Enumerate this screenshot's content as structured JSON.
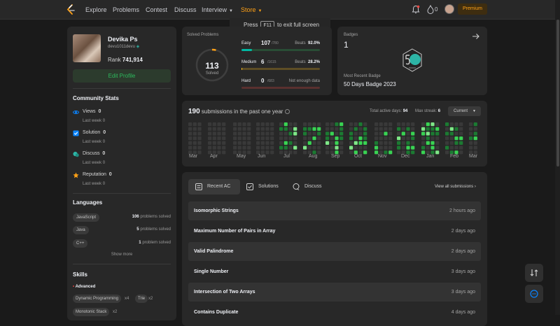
{
  "nav": {
    "items": [
      "Explore",
      "Problems",
      "Contest",
      "Discuss",
      "Interview",
      "Store"
    ],
    "fire_count": "0",
    "premium": "Premium",
    "fullscreen_tip": {
      "before": "Press",
      "key": "F11",
      "after": "to exit full screen"
    }
  },
  "profile": {
    "name": "Devika Ps",
    "handle": "devu1011devu",
    "rank_label": "Rank",
    "rank": "741,914",
    "edit_button": "Edit Profile"
  },
  "community": {
    "title": "Community Stats",
    "stats": [
      {
        "label": "Views",
        "value": "0",
        "sub": "Last week",
        "sub_value": "0",
        "icon": "eye-icon",
        "color": "#0a84ff"
      },
      {
        "label": "Solution",
        "value": "0",
        "sub": "Last week",
        "sub_value": "0",
        "icon": "check-square-icon",
        "color": "#0a84ff"
      },
      {
        "label": "Discuss",
        "value": "0",
        "sub": "Last week",
        "sub_value": "0",
        "icon": "chat-icon",
        "color": "#2db5a6"
      },
      {
        "label": "Reputation",
        "value": "0",
        "sub": "Last week",
        "sub_value": "0",
        "icon": "star-icon",
        "color": "#ffa116"
      }
    ]
  },
  "languages": {
    "title": "Languages",
    "items": [
      {
        "name": "JavaScript",
        "count": "106",
        "suffix": "problems solved"
      },
      {
        "name": "Java",
        "count": "5",
        "suffix": "problems solved"
      },
      {
        "name": "C++",
        "count": "1",
        "suffix": "problem solved"
      }
    ],
    "show_more": "Show more"
  },
  "skills": {
    "title": "Skills",
    "level": "Advanced",
    "tags": [
      {
        "name": "Dynamic Programming",
        "count": "x4"
      },
      {
        "name": "Trie",
        "count": "x2"
      },
      {
        "name": "Monotonic Stack",
        "count": "x2"
      }
    ]
  },
  "solved": {
    "title": "Solved Problems",
    "total": "113",
    "total_label": "Solved",
    "ring_fraction": 0.04,
    "beats_label": "Beats",
    "rows": [
      {
        "name": "Easy",
        "count": "107",
        "total": "/780",
        "beats": "92.0%",
        "fraction": 0.137,
        "color": "#00b8a3",
        "track": "#294d35"
      },
      {
        "name": "Medium",
        "count": "6",
        "total": "/1615",
        "beats": "28.2%",
        "fraction": 0.004,
        "color": "#ffc01e",
        "track": "#5e4e25"
      },
      {
        "name": "Hard",
        "count": "0",
        "total": "/683",
        "beats": "Not enough data",
        "fraction": 0,
        "color": "#ef4743",
        "track": "#5a302f"
      }
    ]
  },
  "badges": {
    "title": "Badges",
    "count": "1",
    "recent_label": "Most Recent Badge",
    "recent_name": "50 Days Badge 2023"
  },
  "heatmap": {
    "count": "190",
    "title_suffix": "submissions in the past one year",
    "active_label": "Total active days:",
    "active_days": "94",
    "streak_label": "Max streak:",
    "max_streak": "6",
    "select": "Current",
    "months": [
      "Mar",
      "Apr",
      "May",
      "Jun",
      "Jul",
      "Aug",
      "Sep",
      "Oct",
      "Nov",
      "Dec",
      "Jan",
      "Feb",
      "Mar"
    ]
  },
  "submissions": {
    "tabs": [
      "Recent AC",
      "Solutions",
      "Discuss"
    ],
    "view_all": "View all submissions",
    "rows": [
      {
        "title": "Isomorphic Strings",
        "time": "2 hours ago"
      },
      {
        "title": "Maximum Number of Pairs in Array",
        "time": "2 days ago"
      },
      {
        "title": "Valid Palindrome",
        "time": "2 days ago"
      },
      {
        "title": "Single Number",
        "time": "3 days ago"
      },
      {
        "title": "Intersection of Two Arrays",
        "time": "3 days ago"
      },
      {
        "title": "Contains Duplicate",
        "time": "4 days ago"
      }
    ]
  }
}
